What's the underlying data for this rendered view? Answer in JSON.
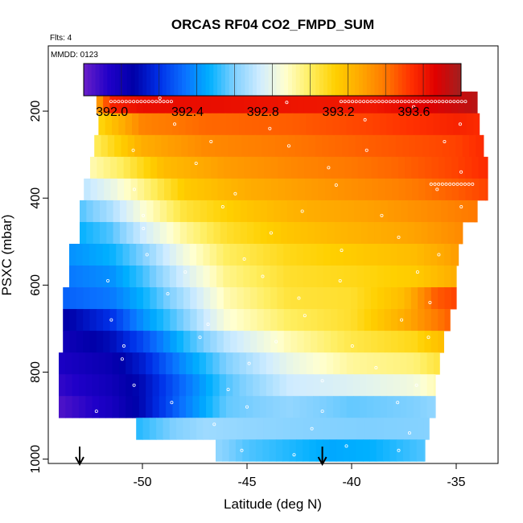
{
  "chart_data": {
    "type": "heatmap",
    "title": "ORCAS RF04 CO2_FMPD_SUM",
    "flights_label": "Flts: 4",
    "date_label": "MMDD: 0123",
    "xlabel": "Latitude (deg N)",
    "ylabel": "PSXC (mbar)",
    "xlim": [
      -54.5,
      -33.0
    ],
    "ylim": [
      1010,
      50
    ],
    "x_ticks": [
      -50,
      -45,
      -40,
      -35
    ],
    "x_tick_labels": [
      "-50",
      "-45",
      "-40",
      "-35"
    ],
    "y_ticks": [
      200,
      400,
      600,
      800,
      1000
    ],
    "y_tick_labels": [
      "200",
      "400",
      "600",
      "800",
      "1000"
    ],
    "colorbar": {
      "min": 391.85,
      "max": 393.85,
      "ticks": [
        392.0,
        392.4,
        392.8,
        393.2,
        393.6
      ],
      "tick_labels": [
        "392.0",
        "392.4",
        "392.8",
        "393.2",
        "393.6"
      ],
      "colors": [
        "#6a1fc8",
        "#1f00c8",
        "#0000a8",
        "#0030e8",
        "#0a70ff",
        "#00b0ff",
        "#80d0ff",
        "#d0ecff",
        "#ffffd0",
        "#ffee60",
        "#ffd000",
        "#ffa800",
        "#ff7800",
        "#ff3000",
        "#e00000",
        "#a02020"
      ]
    },
    "layer_pressure_mbar": [
      180,
      230,
      280,
      330,
      380,
      430,
      480,
      530,
      580,
      630,
      680,
      730,
      780,
      830,
      880,
      930,
      980
    ],
    "layers": [
      {
        "p": 180,
        "lat_min": -52.2,
        "lat_max": -34.0,
        "lat": [
          -52.2,
          -51.5,
          -50.0,
          -47.0,
          -43.0,
          -39.0,
          -36.0,
          -34.0
        ],
        "co2": [
          393.3,
          393.62,
          393.68,
          393.68,
          393.66,
          393.65,
          393.73,
          393.8
        ]
      },
      {
        "p": 230,
        "lat_min": -52.1,
        "lat_max": -33.9,
        "lat": [
          -52.1,
          -50.0,
          -47.0,
          -43.0,
          -39.0,
          -35.0,
          -33.9
        ],
        "co2": [
          393.15,
          393.42,
          393.48,
          393.5,
          393.55,
          393.62,
          393.6
        ]
      },
      {
        "p": 280,
        "lat_min": -52.3,
        "lat_max": -33.7,
        "lat": [
          -52.3,
          -50.0,
          -47.0,
          -43.0,
          -39.0,
          -35.0,
          -33.7
        ],
        "co2": [
          393.05,
          393.3,
          393.4,
          393.45,
          393.5,
          393.55,
          393.6
        ]
      },
      {
        "p": 330,
        "lat_min": -52.5,
        "lat_max": -33.5,
        "lat": [
          -52.5,
          -51.0,
          -49.0,
          -46.0,
          -42.0,
          -38.0,
          -35.0,
          -33.5
        ],
        "co2": [
          392.95,
          393.05,
          393.25,
          393.35,
          393.42,
          393.48,
          393.55,
          393.6
        ]
      },
      {
        "p": 380,
        "lat_min": -52.8,
        "lat_max": -33.5,
        "lat": [
          -52.8,
          -51.5,
          -50.0,
          -48.0,
          -45.0,
          -42.0,
          -38.0,
          -35.0,
          -33.5
        ],
        "co2": [
          392.75,
          392.85,
          393.0,
          393.2,
          393.3,
          393.35,
          393.42,
          393.5,
          393.55
        ]
      },
      {
        "p": 430,
        "lat_min": -53.0,
        "lat_max": -34.0,
        "lat": [
          -53.0,
          -51.5,
          -50.0,
          -48.0,
          -45.0,
          -42.0,
          -39.0,
          -36.0,
          -34.0
        ],
        "co2": [
          392.6,
          392.72,
          392.9,
          393.1,
          393.22,
          393.3,
          393.34,
          393.4,
          393.45
        ]
      },
      {
        "p": 480,
        "lat_min": -53.0,
        "lat_max": -34.7,
        "lat": [
          -53.0,
          -51.5,
          -50.0,
          -48.0,
          -46.0,
          -43.0,
          -40.0,
          -37.0,
          -34.7
        ],
        "co2": [
          392.52,
          392.6,
          392.78,
          392.98,
          393.12,
          393.22,
          393.28,
          393.33,
          393.4
        ]
      },
      {
        "p": 530,
        "lat_min": -53.5,
        "lat_max": -34.9,
        "lat": [
          -53.5,
          -51.5,
          -50.0,
          -48.0,
          -46.0,
          -43.0,
          -40.0,
          -37.0,
          -34.9
        ],
        "co2": [
          392.45,
          392.52,
          392.65,
          392.88,
          393.05,
          393.15,
          393.2,
          393.25,
          393.35
        ]
      },
      {
        "p": 580,
        "lat_min": -53.5,
        "lat_max": -35.0,
        "lat": [
          -53.5,
          -51.5,
          -50.0,
          -48.0,
          -46.0,
          -43.0,
          -40.0,
          -37.0,
          -35.0
        ],
        "co2": [
          392.4,
          392.45,
          392.58,
          392.8,
          393.0,
          393.12,
          393.15,
          393.2,
          393.3
        ]
      },
      {
        "p": 630,
        "lat_min": -53.8,
        "lat_max": -35.0,
        "lat": [
          -53.8,
          -51.5,
          -50.0,
          -48.0,
          -46.0,
          -43.0,
          -40.0,
          -37.5,
          -36.0,
          -35.0
        ],
        "co2": [
          392.35,
          392.4,
          392.52,
          392.72,
          392.95,
          393.1,
          393.12,
          393.25,
          393.5,
          393.55
        ]
      },
      {
        "p": 680,
        "lat_min": -53.8,
        "lat_max": -35.3,
        "lat": [
          -53.8,
          -51.5,
          -50.0,
          -48.0,
          -46.0,
          -43.0,
          -40.0,
          -37.5,
          -35.3
        ],
        "co2": [
          392.1,
          392.25,
          392.45,
          392.65,
          392.9,
          393.05,
          393.12,
          393.3,
          393.5
        ]
      },
      {
        "p": 730,
        "lat_min": -53.8,
        "lat_max": -35.6,
        "lat": [
          -53.8,
          -51.5,
          -50.0,
          -48.0,
          -46.0,
          -43.0,
          -40.0,
          -37.0,
          -35.6
        ],
        "co2": [
          392.05,
          392.15,
          392.3,
          392.55,
          392.75,
          392.95,
          393.08,
          393.15,
          393.25
        ]
      },
      {
        "p": 780,
        "lat_min": -54.0,
        "lat_max": -35.8,
        "lat": [
          -54.0,
          -51.5,
          -50.0,
          -48.0,
          -46.0,
          -43.0,
          -40.0,
          -37.0,
          -35.8
        ],
        "co2": [
          392.0,
          392.08,
          392.2,
          392.45,
          392.65,
          392.85,
          392.98,
          393.02,
          393.1
        ]
      },
      {
        "p": 830,
        "lat_min": -54.0,
        "lat_max": -36.0,
        "lat": [
          -54.0,
          -51.5,
          -50.0,
          -48.0,
          -46.0,
          -43.0,
          -40.0,
          -37.0,
          -36.0
        ],
        "co2": [
          391.95,
          392.05,
          392.15,
          392.38,
          392.6,
          392.78,
          392.82,
          392.88,
          392.95
        ]
      },
      {
        "p": 880,
        "lat_min": -54.0,
        "lat_max": -36.0,
        "lat": [
          -54.0,
          -51.5,
          -50.0,
          -48.0,
          -46.0,
          -43.0,
          -40.0,
          -37.0,
          -36.0
        ],
        "co2": [
          391.9,
          392.02,
          392.15,
          392.4,
          392.62,
          392.68,
          392.62,
          392.65,
          392.68
        ]
      },
      {
        "p": 930,
        "lat_min": -50.3,
        "lat_max": -36.3,
        "lat": [
          -50.3,
          -48.5,
          -47.0,
          -45.0,
          -42.0,
          -39.0,
          -36.3
        ],
        "co2": [
          392.55,
          392.65,
          392.7,
          392.68,
          392.66,
          392.65,
          392.66
        ]
      },
      {
        "p": 980,
        "lat_min": -46.5,
        "lat_max": -36.5,
        "lat": [
          -46.5,
          -45.0,
          -43.0,
          -41.0,
          -39.0,
          -36.5
        ],
        "co2": [
          392.68,
          392.6,
          392.55,
          392.5,
          392.52,
          392.6
        ]
      }
    ],
    "arrows_lat": [
      -53.0,
      -41.4
    ]
  }
}
